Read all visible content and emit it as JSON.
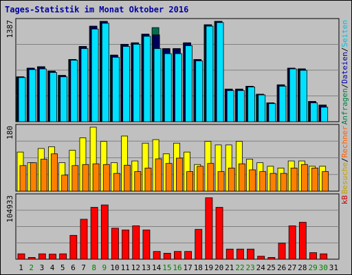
{
  "chart_data": {
    "title": "Tages-Statistik im Monat Oktober 2016",
    "type": "bar",
    "categories": [
      "1",
      "2",
      "3",
      "4",
      "5",
      "6",
      "7",
      "8",
      "9",
      "10",
      "11",
      "12",
      "13",
      "14",
      "15",
      "16",
      "17",
      "18",
      "19",
      "20",
      "21",
      "22",
      "23",
      "24",
      "25",
      "26",
      "27",
      "28",
      "29",
      "30",
      "31"
    ],
    "weekend_categories": [
      "2",
      "8",
      "9",
      "15",
      "16",
      "22",
      "23",
      "29",
      "30"
    ],
    "colors": {
      "plot_bg": "#c0c0c0",
      "weekday_tick": "#000000",
      "weekend_tick": "#008000",
      "grid": "#808080",
      "hits": "#006e50",
      "files": "#00005a",
      "pages": "#00e0ff",
      "visits": "#ffff00",
      "sites": "#ff8000",
      "kbytes": "#ff0000"
    },
    "panels": [
      {
        "name": "top",
        "ymax_label": "1387",
        "ymax": 1387,
        "legend": [
          "Anfragen",
          "/",
          "Dateien",
          "/",
          "Seiten"
        ],
        "legend_colors": [
          "#008040",
          "#000000",
          "#0000a0",
          "#000000",
          "#00c0e0"
        ],
        "series": [
          {
            "name": "Anfragen",
            "values": [
              620,
              740,
              760,
              700,
              640,
              860,
              1040,
              1320,
              1387,
              920,
              1070,
              1090,
              1210,
              1300,
              1010,
              1010,
              1090,
              860,
              1340,
              1387,
              450,
              450,
              490,
              380,
              260,
              510,
              740,
              730,
              280,
              230,
              null
            ]
          },
          {
            "name": "Dateien",
            "values": [
              620,
              740,
              760,
              700,
              640,
              860,
              1040,
              1320,
              1387,
              920,
              1070,
              1090,
              1210,
              1200,
              1010,
              1010,
              1090,
              860,
              1340,
              1387,
              450,
              450,
              490,
              380,
              260,
              510,
              740,
              730,
              280,
              230,
              null
            ]
          },
          {
            "name": "Seiten",
            "values": [
              610,
              720,
              730,
              680,
              620,
              850,
              1010,
              1280,
              1360,
              890,
              1040,
              1070,
              1180,
              1010,
              940,
              940,
              1050,
              840,
              1320,
              1370,
              430,
              430,
              480,
              370,
              250,
              490,
              730,
              710,
              260,
              200,
              null
            ]
          }
        ]
      },
      {
        "name": "middle",
        "ymax_label": "180",
        "ymax": 180,
        "legend": [
          "Besuche",
          "/",
          "Rechner"
        ],
        "legend_colors": [
          "#c0a000",
          "#000000",
          "#ff6000"
        ],
        "series": [
          {
            "name": "Besuche",
            "values": [
              110,
              80,
              120,
              125,
              80,
              115,
              150,
              180,
              140,
              80,
              155,
              85,
              135,
              145,
              105,
              135,
              110,
              75,
              140,
              130,
              130,
              140,
              90,
              80,
              70,
              65,
              85,
              85,
              70,
              70,
              null
            ]
          },
          {
            "name": "Rechner",
            "values": [
              72,
              80,
              90,
              105,
              45,
              72,
              75,
              77,
              75,
              50,
              73,
              55,
              65,
              91,
              78,
              93,
              55,
              70,
              78,
              55,
              65,
              77,
              60,
              55,
              50,
              50,
              65,
              75,
              65,
              55,
              null
            ]
          }
        ]
      },
      {
        "name": "bottom",
        "ymax_label": "104933",
        "ymax": 104933,
        "legend": [
          "kB"
        ],
        "legend_colors": [
          "#c00000"
        ],
        "series": [
          {
            "name": "kB",
            "values": [
              9000,
              3000,
              9000,
              8500,
              9000,
              40000,
              67000,
              87000,
              91000,
              52000,
              49000,
              56000,
              49000,
              13000,
              10000,
              13000,
              13000,
              50000,
              103000,
              87000,
              17000,
              17000,
              17000,
              5000,
              3000,
              27000,
              56000,
              62000,
              11000,
              9000,
              null
            ]
          }
        ]
      }
    ]
  }
}
